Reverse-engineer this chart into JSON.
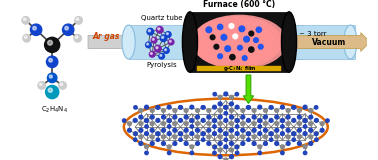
{
  "bg_color": "#ffffff",
  "molecule_label": "C$_2$H$_4$N$_4$",
  "arrow1_label": "Ar gas",
  "tube_label_top": "Quartz tube",
  "tube_label_bottom": "Pyrolysis",
  "furnace_label": "Furnace (600 °C)",
  "film_label": "g-C$_3$N$_4$ film",
  "pressure_label": "~ 3 torr",
  "vacuum_label": "Vacuum",
  "tube_color": "#b8ddf0",
  "tube_color2": "#d0eaf8",
  "furnace_outer": "#1a1a1a",
  "dot_blue": "#2255ee",
  "dot_black": "#111111",
  "dot_white": "#ffffff",
  "arrow_orange": "#cc5500",
  "film_gold": "#ddaa00",
  "green_arrow": "#44cc00",
  "ellipse_orange": "#dd6600",
  "cn_blue": "#2244bb",
  "cn_grey": "#888888",
  "vac_arrow_color": "#ddbb88",
  "grey_arrow_color": "#cccccc"
}
